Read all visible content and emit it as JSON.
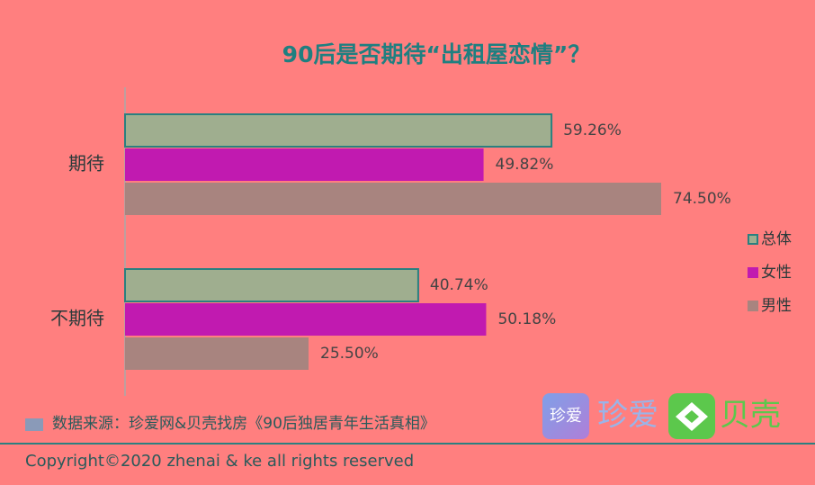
{
  "chart_data": {
    "type": "bar",
    "orientation": "horizontal",
    "title": "90后是否期待“出租屋恋情”？",
    "categories": [
      "期待",
      "不期待"
    ],
    "series": [
      {
        "name": "总体",
        "color": "#9fae8f",
        "edgecolor": "#2a8080",
        "values": [
          59.26,
          40.74
        ],
        "value_labels": [
          "59.26%",
          "40.74%"
        ]
      },
      {
        "name": "女性",
        "color": "#c11ab0",
        "values": [
          49.82,
          50.18
        ],
        "value_labels": [
          "49.82%",
          "50.18%"
        ]
      },
      {
        "name": "男性",
        "color": "#a8847f",
        "values": [
          74.5,
          25.5
        ],
        "value_labels": [
          "74.50%",
          "25.50%"
        ]
      }
    ],
    "legend": "right"
  },
  "footer": {
    "source": "数据来源：珍爱网&贝壳找房《90后独居青年生活真相》",
    "copyright": "Copyright©2020 zhenai & ke all rights reserved",
    "logos": [
      "珍爱",
      "珍爱",
      "贝壳"
    ]
  }
}
